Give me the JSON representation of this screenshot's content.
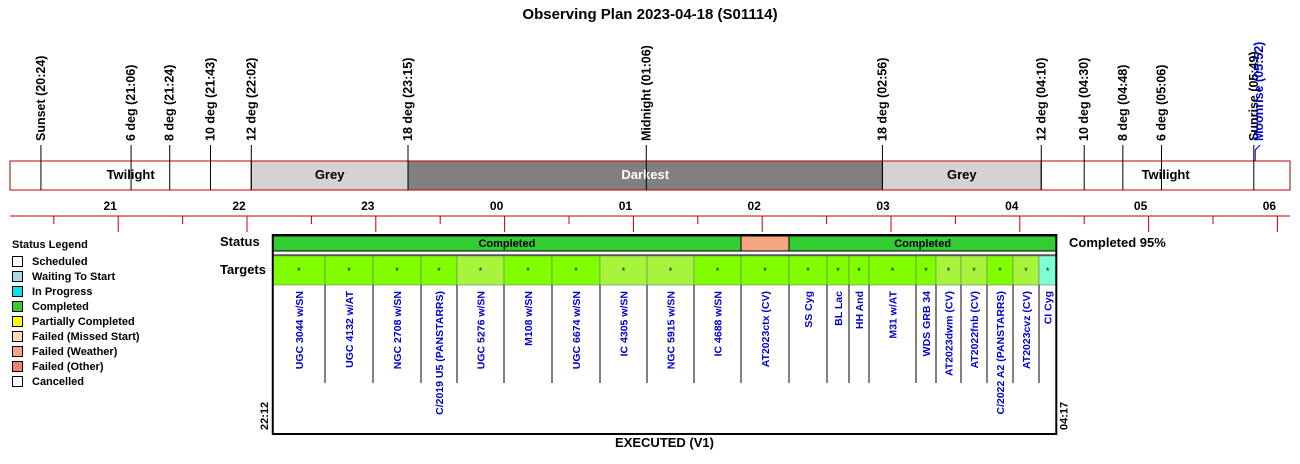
{
  "title": "Observing Plan 2023-04-18 (S01114)",
  "night_events": [
    {
      "label": "Sunset (20:24)"
    },
    {
      "label": "6 deg (21:06)"
    },
    {
      "label": "8 deg (21:24)"
    },
    {
      "label": "10 deg (21:43)"
    },
    {
      "label": "12 deg (22:02)"
    },
    {
      "label": "18 deg (23:15)"
    },
    {
      "label": "Midnight (01:06)"
    },
    {
      "label": "18 deg (02:56)"
    },
    {
      "label": "12 deg (04:10)"
    },
    {
      "label": "10 deg (04:30)"
    },
    {
      "label": "8 deg (04:48)"
    },
    {
      "label": "6 deg (05:06)"
    },
    {
      "label": "Sunrise (05:49)"
    },
    {
      "label": "Moonrise (05:52)",
      "color": "#0000cc"
    }
  ],
  "phases": [
    {
      "label": "Twilight",
      "color": "#ffffff",
      "text_color": "#000000"
    },
    {
      "label": "Grey",
      "color": "#d3d3d3",
      "text_color": "#000000"
    },
    {
      "label": "Darkest",
      "color": "#808080",
      "text_color": "#ffffff"
    },
    {
      "label": "Grey",
      "color": "#d3d3d3",
      "text_color": "#000000"
    },
    {
      "label": "Twilight",
      "color": "#ffffff",
      "text_color": "#000000"
    }
  ],
  "hour_labels": [
    "21",
    "22",
    "23",
    "00",
    "01",
    "02",
    "03",
    "04",
    "05",
    "06"
  ],
  "status_label": "Status",
  "targets_label": "Targets",
  "status_segments": [
    {
      "label": "Completed",
      "color": "#33cc33"
    },
    {
      "label": "",
      "color": "#f4a582"
    },
    {
      "label": "Completed",
      "color": "#33cc33"
    }
  ],
  "completion_text": "Completed 95%",
  "targets": [
    {
      "name": "UGC 3044 w/SN",
      "color": "#80ff00"
    },
    {
      "name": "UGC 4132 w/AT",
      "color": "#80ff00"
    },
    {
      "name": "NGC 2708 w/SN",
      "color": "#80ff00"
    },
    {
      "name": "C/2019 U5 (PANSTARRS)",
      "color": "#80ff00"
    },
    {
      "name": "UGC 5276 w/SN",
      "color": "#a6f53c"
    },
    {
      "name": "M108 w/SN",
      "color": "#80ff00"
    },
    {
      "name": "UGC 6674 w/SN",
      "color": "#80ff00"
    },
    {
      "name": "IC 4305 w/SN",
      "color": "#a6f53c"
    },
    {
      "name": "NGC 5915 w/SN",
      "color": "#a6f53c"
    },
    {
      "name": "IC 4688 w/SN",
      "color": "#80ff00"
    },
    {
      "name": "AT2023ctx (CV)",
      "color": "#80ff00"
    },
    {
      "name": "SS Cyg",
      "color": "#80ff00"
    },
    {
      "name": "BL Lac",
      "color": "#80ff00"
    },
    {
      "name": "HH And",
      "color": "#80ff00"
    },
    {
      "name": "M31 w/AT",
      "color": "#80ff00"
    },
    {
      "name": "WDS GRB 34",
      "color": "#80ff00"
    },
    {
      "name": "AT2023dwm (CV)",
      "color": "#a6f53c"
    },
    {
      "name": "AT2022fnb (CV)",
      "color": "#a6f53c"
    },
    {
      "name": "C/2022 A2 (PANSTARRS)",
      "color": "#80ff00"
    },
    {
      "name": "AT2023cvz (CV)",
      "color": "#a6f53c"
    },
    {
      "name": "CI Cyg",
      "color": "#7fffd4"
    }
  ],
  "target_marker": "*",
  "start_time": "22:12",
  "end_time": "04:17",
  "footer": "EXECUTED (V1)",
  "legend": {
    "title": "Status Legend",
    "items": [
      {
        "label": "Scheduled",
        "color": "#ffffff"
      },
      {
        "label": "Waiting To Start",
        "color": "#add8e6"
      },
      {
        "label": "In Progress",
        "color": "#00e5e5"
      },
      {
        "label": "Completed",
        "color": "#33cc33"
      },
      {
        "label": "Partially Completed",
        "color": "#ffff00"
      },
      {
        "label": "Failed (Missed Start)",
        "color": "#ffdab9"
      },
      {
        "label": "Failed (Weather)",
        "color": "#f4a582"
      },
      {
        "label": "Failed (Other)",
        "color": "#f08070"
      },
      {
        "label": "Cancelled",
        "color": "#ffffff"
      }
    ]
  }
}
